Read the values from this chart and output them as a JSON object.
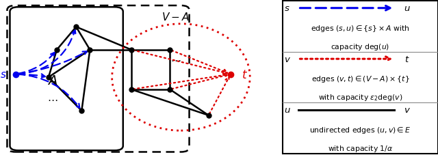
{
  "fig_width": 6.4,
  "fig_height": 2.28,
  "dpi": 100,
  "blue_color": "#0000EE",
  "red_color": "#DD0000",
  "black_color": "#000000",
  "bg_color": "#FFFFFF",
  "legend_rows": [
    {
      "line_color": "#0000EE",
      "line_style": "dashed",
      "arrow": true,
      "left_label": "s",
      "right_label": "u",
      "desc1": "edges $(s,u) \\in \\{s\\} \\times A$ with",
      "desc2": "capacity deg$(u)$"
    },
    {
      "line_color": "#DD0000",
      "line_style": "dotted",
      "arrow": true,
      "left_label": "v",
      "right_label": "t",
      "desc1": "edges $(v,t) \\in (V-A) \\times \\{t\\}$",
      "desc2": "with capacity $\\varepsilon_2$deg$(v)$"
    },
    {
      "line_color": "#000000",
      "line_style": "solid",
      "arrow": false,
      "left_label": "u",
      "right_label": "v",
      "desc1": "undirected edges $(u,v) \\in E$",
      "desc2": "with capacity $1/\\alpha$"
    }
  ]
}
